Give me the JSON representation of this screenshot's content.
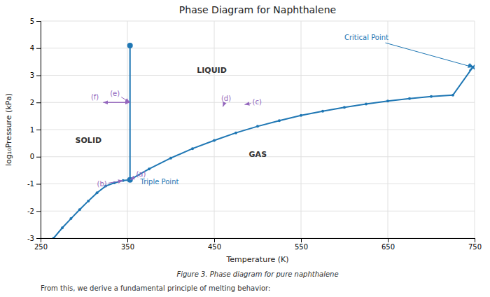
{
  "chart_data": {
    "type": "line",
    "title": "Phase Diagram for Naphthalene",
    "xlabel": "Temperature (K)",
    "ylabel": "log₁₀Pressure (kPa)",
    "xlim": [
      250,
      750
    ],
    "ylim": [
      -3.0,
      5.0
    ],
    "xticks": [
      250,
      350,
      450,
      550,
      650,
      750
    ],
    "yticks": [
      -3,
      -2,
      -1,
      0,
      1,
      2,
      3,
      4,
      5
    ],
    "grid": true,
    "series": [
      {
        "x": [
          265,
          275,
          285,
          295,
          305,
          315,
          325,
          335,
          345,
          353
        ],
        "values": [
          -3.0,
          -2.62,
          -2.28,
          -1.95,
          -1.63,
          -1.33,
          -1.08,
          -0.96,
          -0.88,
          -0.85
        ],
        "marker": "circle",
        "line_style": "solid"
      },
      {
        "x": [
          353,
          375,
          400,
          425,
          450,
          475,
          500,
          525,
          550,
          575,
          600,
          625,
          650,
          675,
          700,
          725,
          748
        ],
        "values": [
          -0.85,
          -0.45,
          -0.05,
          0.3,
          0.6,
          0.88,
          1.12,
          1.33,
          1.52,
          1.68,
          1.82,
          1.94,
          2.05,
          2.14,
          2.22,
          2.27,
          3.3
        ],
        "marker": "circle",
        "line_style": "solid"
      },
      {
        "x": [
          353,
          353,
          353,
          353
        ],
        "values": [
          -0.85,
          1.5,
          3.0,
          4.1
        ],
        "marker": "none",
        "line_style": "solid"
      },
      {
        "x": [
          353
        ],
        "values": [
          4.1
        ],
        "marker": "circle",
        "line_style": "none"
      },
      {
        "x": [
          353
        ],
        "values": [
          -0.85
        ],
        "marker": "circle",
        "line_style": "none"
      },
      {
        "x": [
          748
        ],
        "values": [
          3.3
        ],
        "marker": "x",
        "line_style": "none"
      }
    ],
    "region_labels": [
      {
        "text": "SOLID",
        "x": 290,
        "y": 0.5
      },
      {
        "text": "LIQUID",
        "x": 430,
        "y": 3.1
      },
      {
        "text": "GAS",
        "x": 490,
        "y": 0.0
      }
    ],
    "point_labels": [
      {
        "text": "Critical Point",
        "x": 600,
        "y": 4.3,
        "arrow_to": [
          748,
          3.3
        ]
      },
      {
        "text": "Triple Point",
        "x": 365,
        "y": -1.0
      }
    ],
    "process_annotations": [
      {
        "text": "(a)",
        "x": 360,
        "y": -0.72,
        "arrow_to": [
          353,
          -0.85
        ]
      },
      {
        "text": "(b)",
        "x": 315,
        "y": -1.1,
        "arrow_to": [
          345,
          -0.88
        ]
      },
      {
        "text": "(c)",
        "x": 494,
        "y": 1.92,
        "arrow_to": [
          485,
          1.92
        ]
      },
      {
        "text": "(d)",
        "x": 458,
        "y": 2.05,
        "arrow_to": [
          460,
          1.84
        ]
      },
      {
        "text": "(e)",
        "x": 330,
        "y": 2.25,
        "arrow_to": [
          353,
          2.0
        ]
      },
      {
        "text": "(f)",
        "x": 308,
        "y": 2.1
      }
    ],
    "process_arrows": [
      {
        "from": [
          326,
          2.0
        ],
        "to": [
          353,
          2.0
        ]
      },
      {
        "from": [
          353,
          2.0
        ],
        "to": [
          322,
          2.0
        ]
      }
    ],
    "caption": "Figure 3.  Phase diagram for pure naphthalene",
    "note": "From this, we derive a fundamental principle of melting behavior:"
  }
}
